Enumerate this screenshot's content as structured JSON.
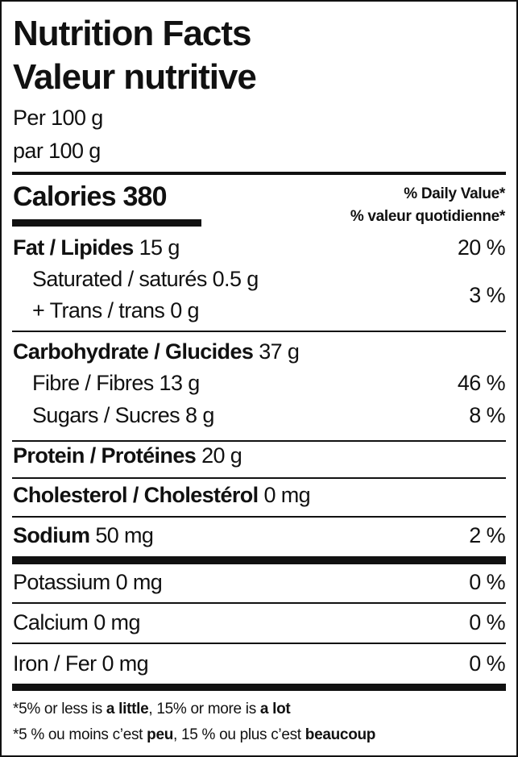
{
  "title_en": "Nutrition Facts",
  "title_fr": "Valeur nutritive",
  "serving_en": "Per 100 g",
  "serving_fr": "par 100 g",
  "calories_label": "Calories",
  "calories_value": "380",
  "dv_header_en": "% Daily Value*",
  "dv_header_fr": "% valeur quotidienne*",
  "rows": {
    "fat": {
      "label": "Fat / Lipides",
      "amount": "15 g",
      "dv": "20 %"
    },
    "saturated": {
      "label": "Saturated / saturés",
      "amount": "0.5 g"
    },
    "trans": {
      "label": "+ Trans / trans",
      "amount": "0 g"
    },
    "sat_trans_dv": "3 %",
    "carbohydrate": {
      "label": "Carbohydrate / Glucides",
      "amount": "37 g"
    },
    "fibre": {
      "label": "Fibre / Fibres",
      "amount": "13 g",
      "dv": "46 %"
    },
    "sugars": {
      "label": "Sugars / Sucres",
      "amount": "8 g",
      "dv": "8 %"
    },
    "protein": {
      "label": "Protein / Protéines",
      "amount": "20 g"
    },
    "cholesterol": {
      "label": "Cholesterol / Cholestérol",
      "amount": "0 mg"
    },
    "sodium": {
      "label": "Sodium",
      "amount": "50 mg",
      "dv": "2 %"
    },
    "potassium": {
      "label": "Potassium",
      "amount": "0 mg",
      "dv": "0 %"
    },
    "calcium": {
      "label": "Calcium",
      "amount": "0 mg",
      "dv": "0 %"
    },
    "iron": {
      "label": "Iron / Fer",
      "amount": "0 mg",
      "dv": "0 %"
    }
  },
  "footnote_en": {
    "a": "*5% or less is ",
    "b": "a little",
    "c": ", 15% or more is ",
    "d": "a lot"
  },
  "footnote_fr": {
    "a": "*5 % ou moins c’est ",
    "b": "peu",
    "c": ", 15 % ou plus c’est ",
    "d": "beaucoup"
  }
}
